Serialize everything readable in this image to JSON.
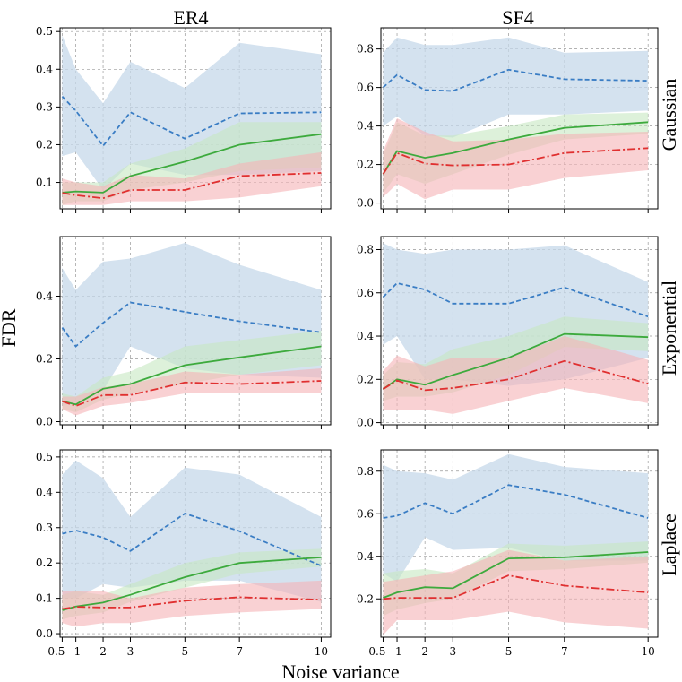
{
  "figure": {
    "columns": [
      "ER4",
      "SF4"
    ],
    "rows": [
      "Gaussian",
      "Exponential",
      "Laplace"
    ],
    "xlabel": "Noise variance",
    "ylabel": "FDR"
  },
  "colors": {
    "blue": "#3a7dc4",
    "blue_band": "#c5d8ea",
    "green": "#3daa3d",
    "green_band": "#c6e8c2",
    "red": "#e03030",
    "red_band": "#f5b3b6"
  },
  "chart_data": [
    {
      "type": "line",
      "panel": "ER4-Gaussian",
      "column": "ER4",
      "row": "Gaussian",
      "x": [
        0.5,
        1,
        2,
        3,
        5,
        7,
        10
      ],
      "x_tick_labels": [
        "0.5",
        "1",
        "2",
        "3",
        "5",
        "7",
        "10"
      ],
      "ylim": [
        0.03,
        0.51
      ],
      "yticks": [
        0.1,
        0.2,
        0.3,
        0.4,
        0.5
      ],
      "series": [
        {
          "name": "blue-dashed",
          "style": "dashed",
          "values": [
            0.328,
            0.29,
            0.197,
            0.286,
            0.216,
            0.283,
            0.286
          ],
          "lower": [
            0.17,
            0.18,
            0.08,
            0.15,
            0.12,
            0.12,
            0.13
          ],
          "upper": [
            0.49,
            0.4,
            0.31,
            0.42,
            0.35,
            0.47,
            0.44
          ]
        },
        {
          "name": "green-solid",
          "style": "solid",
          "values": [
            0.073,
            0.076,
            0.073,
            0.117,
            0.155,
            0.2,
            0.228
          ],
          "lower": [
            0.04,
            0.05,
            0.05,
            0.08,
            0.1,
            0.13,
            0.14
          ],
          "upper": [
            0.1,
            0.1,
            0.1,
            0.15,
            0.19,
            0.26,
            0.26
          ]
        },
        {
          "name": "red-dashdot",
          "style": "dashdot",
          "values": [
            0.072,
            0.066,
            0.058,
            0.08,
            0.08,
            0.117,
            0.125
          ],
          "lower": [
            0.04,
            0.04,
            0.04,
            0.05,
            0.05,
            0.06,
            0.09
          ],
          "upper": [
            0.11,
            0.1,
            0.09,
            0.12,
            0.11,
            0.15,
            0.18
          ]
        }
      ]
    },
    {
      "type": "line",
      "panel": "SF4-Gaussian",
      "column": "SF4",
      "row": "Gaussian",
      "x": [
        0.5,
        1,
        2,
        3,
        5,
        7,
        10
      ],
      "x_tick_labels": [
        "0.5",
        "1",
        "2",
        "3",
        "5",
        "7",
        "10"
      ],
      "ylim": [
        -0.03,
        0.91
      ],
      "yticks": [
        0.0,
        0.2,
        0.4,
        0.6,
        0.8
      ],
      "series": [
        {
          "name": "blue-dashed",
          "style": "dashed",
          "values": [
            0.6,
            0.665,
            0.587,
            0.582,
            0.692,
            0.643,
            0.635
          ],
          "lower": [
            0.4,
            0.45,
            0.35,
            0.34,
            0.46,
            0.46,
            0.48
          ],
          "upper": [
            0.78,
            0.86,
            0.82,
            0.82,
            0.86,
            0.78,
            0.79
          ]
        },
        {
          "name": "green-solid",
          "style": "solid",
          "values": [
            0.15,
            0.27,
            0.235,
            0.26,
            0.33,
            0.39,
            0.42
          ],
          "lower": [
            0.05,
            0.15,
            0.1,
            0.15,
            0.25,
            0.33,
            0.36
          ],
          "upper": [
            0.25,
            0.42,
            0.35,
            0.35,
            0.4,
            0.46,
            0.47
          ]
        },
        {
          "name": "red-dashdot",
          "style": "dashdot",
          "values": [
            0.15,
            0.26,
            0.205,
            0.195,
            0.2,
            0.26,
            0.285
          ],
          "lower": [
            0.03,
            0.1,
            0.02,
            0.07,
            0.07,
            0.13,
            0.17
          ],
          "upper": [
            0.27,
            0.44,
            0.37,
            0.32,
            0.33,
            0.36,
            0.37
          ]
        }
      ]
    },
    {
      "type": "line",
      "panel": "ER4-Exponential",
      "column": "ER4",
      "row": "Exponential",
      "x": [
        0.5,
        1,
        2,
        3,
        5,
        7,
        10
      ],
      "x_tick_labels": [
        "0.5",
        "1",
        "2",
        "3",
        "5",
        "7",
        "10"
      ],
      "ylim": [
        -0.01,
        0.59
      ],
      "yticks": [
        0.0,
        0.2,
        0.4
      ],
      "series": [
        {
          "name": "blue-dashed",
          "style": "dashed",
          "values": [
            0.3,
            0.24,
            0.315,
            0.38,
            0.35,
            0.32,
            0.285
          ],
          "lower": [
            0.05,
            0.06,
            0.1,
            0.24,
            0.17,
            0.15,
            0.14
          ],
          "upper": [
            0.49,
            0.42,
            0.51,
            0.52,
            0.57,
            0.5,
            0.42
          ]
        },
        {
          "name": "green-solid",
          "style": "solid",
          "values": [
            0.065,
            0.055,
            0.105,
            0.12,
            0.18,
            0.205,
            0.24
          ],
          "lower": [
            0.04,
            0.03,
            0.07,
            0.09,
            0.12,
            0.15,
            0.18
          ],
          "upper": [
            0.09,
            0.08,
            0.14,
            0.16,
            0.24,
            0.26,
            0.29
          ]
        },
        {
          "name": "red-dashdot",
          "style": "dashdot",
          "values": [
            0.065,
            0.05,
            0.085,
            0.085,
            0.125,
            0.12,
            0.13
          ],
          "lower": [
            0.04,
            0.02,
            0.05,
            0.06,
            0.09,
            0.09,
            0.09
          ],
          "upper": [
            0.08,
            0.08,
            0.11,
            0.12,
            0.16,
            0.15,
            0.17
          ]
        }
      ]
    },
    {
      "type": "line",
      "panel": "SF4-Exponential",
      "column": "SF4",
      "row": "Exponential",
      "x": [
        0.5,
        1,
        2,
        3,
        5,
        7,
        10
      ],
      "x_tick_labels": [
        "0.5",
        "1",
        "2",
        "3",
        "5",
        "7",
        "10"
      ],
      "ylim": [
        -0.01,
        0.86
      ],
      "yticks": [
        0.0,
        0.2,
        0.4,
        0.6,
        0.8
      ],
      "series": [
        {
          "name": "blue-dashed",
          "style": "dashed",
          "values": [
            0.58,
            0.645,
            0.615,
            0.55,
            0.55,
            0.625,
            0.49
          ],
          "lower": [
            0.36,
            0.4,
            0.2,
            0.2,
            0.17,
            0.2,
            0.3
          ],
          "upper": [
            0.83,
            0.8,
            0.78,
            0.8,
            0.8,
            0.82,
            0.65
          ]
        },
        {
          "name": "green-solid",
          "style": "solid",
          "values": [
            0.155,
            0.2,
            0.175,
            0.22,
            0.3,
            0.41,
            0.395
          ],
          "lower": [
            0.1,
            0.12,
            0.12,
            0.14,
            0.22,
            0.35,
            0.33
          ],
          "upper": [
            0.22,
            0.28,
            0.27,
            0.34,
            0.4,
            0.49,
            0.46
          ]
        },
        {
          "name": "red-dashdot",
          "style": "dashdot",
          "values": [
            0.155,
            0.195,
            0.15,
            0.16,
            0.2,
            0.285,
            0.18
          ],
          "lower": [
            0.06,
            0.06,
            0.06,
            0.04,
            0.1,
            0.16,
            0.09
          ],
          "upper": [
            0.24,
            0.31,
            0.26,
            0.3,
            0.3,
            0.4,
            0.29
          ]
        }
      ]
    },
    {
      "type": "line",
      "panel": "ER4-Laplace",
      "column": "ER4",
      "row": "Laplace",
      "x": [
        0.5,
        1,
        2,
        3,
        5,
        7,
        10
      ],
      "x_tick_labels": [
        "0.5",
        "1",
        "2",
        "3",
        "5",
        "7",
        "10"
      ],
      "ylim": [
        -0.01,
        0.52
      ],
      "yticks": [
        0.0,
        0.1,
        0.2,
        0.3,
        0.4,
        0.5
      ],
      "series": [
        {
          "name": "blue-dashed",
          "style": "dashed",
          "values": [
            0.283,
            0.292,
            0.272,
            0.234,
            0.34,
            0.29,
            0.192
          ],
          "lower": [
            0.1,
            0.1,
            0.14,
            0.13,
            0.15,
            0.15,
            0.09
          ],
          "upper": [
            0.45,
            0.49,
            0.44,
            0.33,
            0.47,
            0.45,
            0.33
          ]
        },
        {
          "name": "green-solid",
          "style": "solid",
          "values": [
            0.066,
            0.077,
            0.088,
            0.11,
            0.16,
            0.2,
            0.216
          ],
          "lower": [
            0.04,
            0.05,
            0.06,
            0.09,
            0.13,
            0.17,
            0.19
          ],
          "upper": [
            0.11,
            0.12,
            0.11,
            0.14,
            0.2,
            0.23,
            0.24
          ]
        },
        {
          "name": "red-dashdot",
          "style": "dashdot",
          "values": [
            0.07,
            0.076,
            0.074,
            0.074,
            0.093,
            0.103,
            0.096
          ],
          "lower": [
            0.03,
            0.02,
            0.03,
            0.03,
            0.05,
            0.06,
            0.07
          ],
          "upper": [
            0.12,
            0.12,
            0.12,
            0.1,
            0.13,
            0.14,
            0.15
          ]
        }
      ]
    },
    {
      "type": "line",
      "panel": "SF4-Laplace",
      "column": "SF4",
      "row": "Laplace",
      "x": [
        0.5,
        1,
        2,
        3,
        5,
        7,
        10
      ],
      "x_tick_labels": [
        "0.5",
        "1",
        "2",
        "3",
        "5",
        "7",
        "10"
      ],
      "ylim": [
        0.02,
        0.9
      ],
      "yticks": [
        0.2,
        0.4,
        0.6,
        0.8
      ],
      "series": [
        {
          "name": "blue-dashed",
          "style": "dashed",
          "values": [
            0.58,
            0.59,
            0.65,
            0.6,
            0.735,
            0.69,
            0.58
          ],
          "lower": [
            0.32,
            0.28,
            0.49,
            0.43,
            0.44,
            0.38,
            0.38
          ],
          "upper": [
            0.83,
            0.8,
            0.79,
            0.76,
            0.88,
            0.82,
            0.79
          ]
        },
        {
          "name": "green-solid",
          "style": "solid",
          "values": [
            0.205,
            0.23,
            0.255,
            0.25,
            0.39,
            0.395,
            0.42
          ],
          "lower": [
            0.12,
            0.15,
            0.18,
            0.2,
            0.33,
            0.34,
            0.37
          ],
          "upper": [
            0.32,
            0.33,
            0.34,
            0.32,
            0.46,
            0.45,
            0.47
          ]
        },
        {
          "name": "red-dashdot",
          "style": "dashdot",
          "values": [
            0.2,
            0.205,
            0.205,
            0.205,
            0.31,
            0.262,
            0.23
          ],
          "lower": [
            0.03,
            0.1,
            0.1,
            0.1,
            0.14,
            0.09,
            0.06
          ],
          "upper": [
            0.28,
            0.29,
            0.31,
            0.33,
            0.43,
            0.38,
            0.4
          ]
        }
      ]
    }
  ]
}
